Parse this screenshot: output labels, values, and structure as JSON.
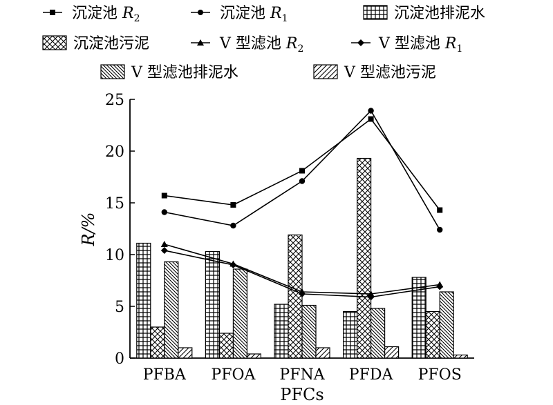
{
  "chart_data": {
    "type": "bar",
    "xlabel": "PFCs",
    "ylabel": "R/%",
    "ylim": [
      0,
      25
    ],
    "yticks": [
      0,
      5,
      10,
      15,
      20,
      25
    ],
    "categories": [
      "PFBA",
      "PFOA",
      "PFNA",
      "PFDA",
      "PFOS"
    ],
    "bar_series": [
      {
        "name": "沉淀池排泥水",
        "pattern": "grid",
        "values": [
          11.1,
          10.3,
          5.2,
          4.5,
          7.8
        ]
      },
      {
        "name": "沉淀池污泥",
        "pattern": "crosshatch",
        "values": [
          3.0,
          2.4,
          11.9,
          19.3,
          4.5
        ]
      },
      {
        "name": "V 型滤池排泥水",
        "pattern": "backslash",
        "values": [
          9.3,
          8.6,
          5.1,
          4.8,
          6.4
        ]
      },
      {
        "name": "V 型滤池污泥",
        "pattern": "slash",
        "values": [
          1.0,
          0.4,
          1.0,
          1.1,
          0.3
        ]
      }
    ],
    "line_series": [
      {
        "name": "沉淀池 R2",
        "marker": "square",
        "values": [
          15.7,
          14.8,
          18.1,
          23.1,
          14.3
        ]
      },
      {
        "name": "沉淀池 R1",
        "marker": "circle",
        "values": [
          14.1,
          12.8,
          17.1,
          23.9,
          12.4
        ]
      },
      {
        "name": "V 型滤池 R2",
        "marker": "triangle",
        "values": [
          11.0,
          9.1,
          6.4,
          6.2,
          7.1
        ]
      },
      {
        "name": "V 型滤池 R1",
        "marker": "diamond",
        "values": [
          10.4,
          9.0,
          6.2,
          5.9,
          6.9
        ]
      }
    ],
    "legend_placement": "top",
    "grid": false
  },
  "legend": {
    "line1_base": "沉淀池",
    "line1_sym": "R",
    "line1_sub": "2",
    "line2_base": "沉淀池",
    "line2_sym": "R",
    "line2_sub": "1",
    "line3_base": "V 型滤池",
    "line3_sym": "R",
    "line3_sub": "2",
    "line4_base": "V 型滤池",
    "line4_sym": "R",
    "line4_sub": "1"
  }
}
